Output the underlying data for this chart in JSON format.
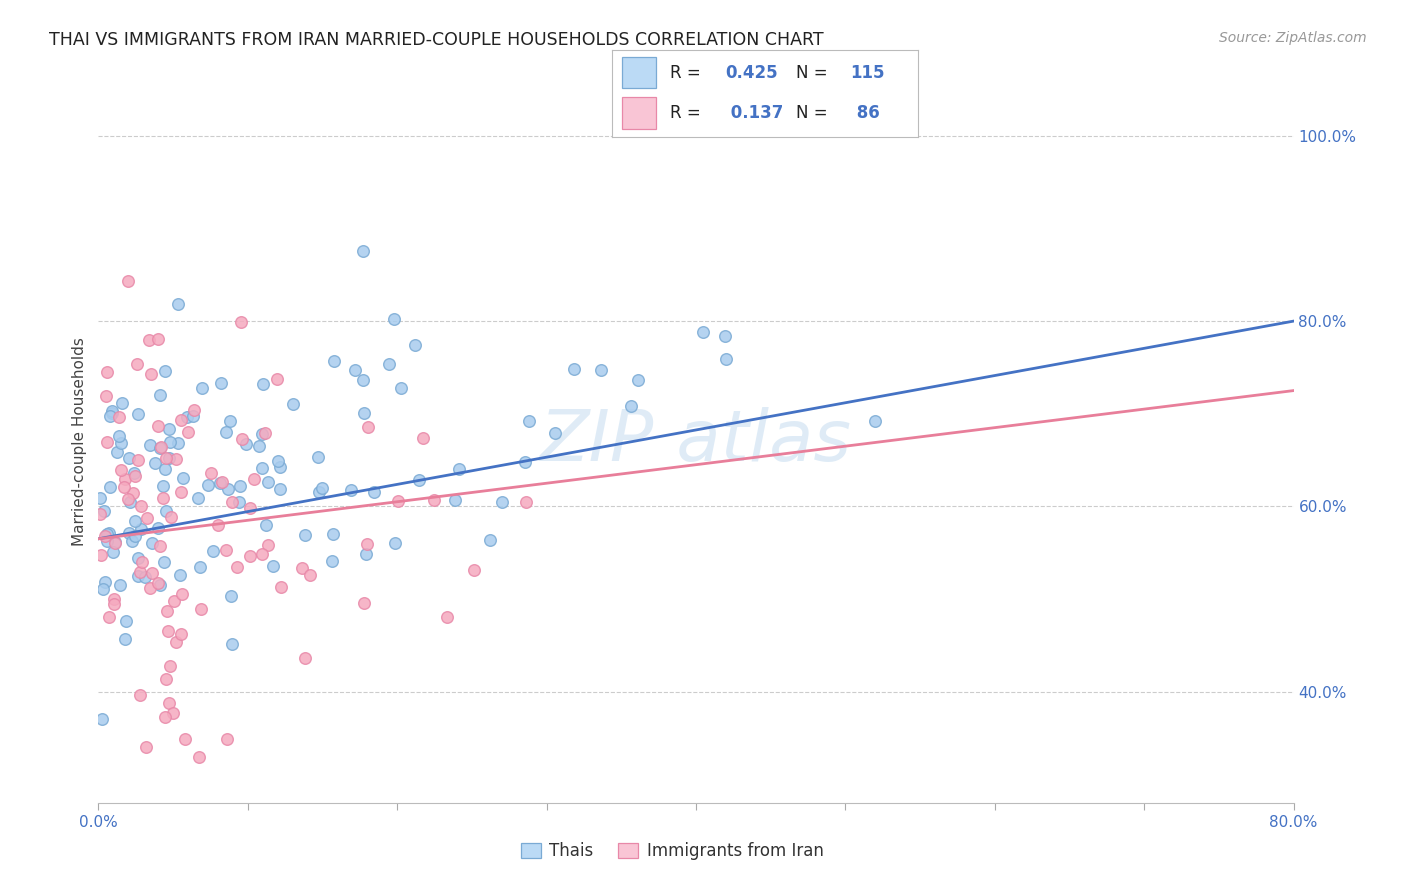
{
  "title": "THAI VS IMMIGRANTS FROM IRAN MARRIED-COUPLE HOUSEHOLDS CORRELATION CHART",
  "source": "Source: ZipAtlas.com",
  "ylabel": "Married-couple Households",
  "xlim": [
    0.0,
    0.8
  ],
  "ylim": [
    0.28,
    1.06
  ],
  "x_ticks": [
    0.0,
    0.1,
    0.2,
    0.3,
    0.4,
    0.5,
    0.6,
    0.7,
    0.8
  ],
  "x_tick_labels": [
    "0.0%",
    "",
    "",
    "",
    "",
    "",
    "",
    "",
    "80.0%"
  ],
  "y_ticks": [
    0.4,
    0.6,
    0.8,
    1.0
  ],
  "y_tick_labels": [
    "40.0%",
    "60.0%",
    "80.0%",
    "100.0%"
  ],
  "blue_R": 0.425,
  "blue_N": 115,
  "pink_R": 0.137,
  "pink_N": 86,
  "blue_scatter_color": "#A8CCEE",
  "pink_scatter_color": "#F5AABF",
  "blue_edge_color": "#7AAAD4",
  "pink_edge_color": "#E888A8",
  "blue_line_color": "#4472C4",
  "pink_line_color": "#E87E9A",
  "legend_blue_fill": "#BBDAF5",
  "legend_pink_fill": "#F9C5D5",
  "legend_blue_edge": "#7AAAD4",
  "legend_pink_edge": "#E888A8",
  "watermark_color": "#C5DCF0",
  "grid_color": "#CCCCCC",
  "title_color": "#222222",
  "axis_value_color": "#4472C4",
  "background_color": "#FFFFFF",
  "marker_size": 70,
  "marker_lw": 1.0,
  "line_width": 2.0,
  "title_fontsize": 12.5,
  "tick_fontsize": 11,
  "ylabel_fontsize": 11,
  "source_fontsize": 10,
  "legend_fontsize": 12,
  "watermark_fontsize": 52,
  "seed_blue": 42,
  "seed_pink": 7,
  "blue_line_y0": 0.565,
  "blue_line_y1": 0.8,
  "pink_line_y0": 0.565,
  "pink_line_y1": 0.725
}
